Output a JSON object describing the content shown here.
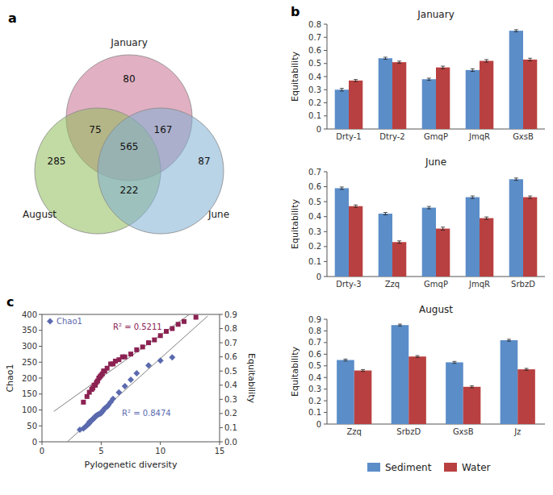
{
  "chart_data": [
    {
      "type": "venn",
      "sets": [
        "January",
        "August",
        "June"
      ],
      "colors": [
        "#c87090",
        "#8fbc5a",
        "#7fafd4"
      ],
      "values": [
        80,
        285,
        87,
        75,
        167,
        222,
        565
      ],
      "annotations": [
        {
          "text": "a"
        }
      ]
    },
    {
      "type": "bar",
      "title": "January",
      "ylabel": "Equitability",
      "categories": [
        "Drty-1",
        "Dtry-2",
        "GmqP",
        "JmqR",
        "GxsB"
      ],
      "ylim": [
        0,
        0.8
      ],
      "yticks": [
        0,
        0.1,
        0.2,
        0.3,
        0.4,
        0.5,
        0.6,
        0.7,
        0.8
      ],
      "series": [
        {
          "name": "Sediment",
          "color": "#5b8dc8",
          "values": [
            0.3,
            0.54,
            0.38,
            0.45,
            0.75
          ],
          "errors": [
            0.01,
            0.008,
            0.008,
            0.01,
            0.008
          ]
        },
        {
          "name": "Water",
          "color": "#b94040",
          "values": [
            0.37,
            0.51,
            0.47,
            0.52,
            0.53
          ],
          "errors": [
            0.008,
            0.008,
            0.01,
            0.01,
            0.01
          ]
        }
      ],
      "annotations": [
        {
          "text": "b"
        }
      ]
    },
    {
      "type": "bar",
      "title": "June",
      "ylabel": "Equitability",
      "categories": [
        "Drty-3",
        "Zzq",
        "GmqP",
        "JmqR",
        "SrbzD"
      ],
      "ylim": [
        0,
        0.7
      ],
      "yticks": [
        0,
        0.1,
        0.2,
        0.3,
        0.4,
        0.5,
        0.6,
        0.7
      ],
      "series": [
        {
          "name": "Sediment",
          "color": "#5b8dc8",
          "values": [
            0.59,
            0.42,
            0.46,
            0.53,
            0.65
          ],
          "errors": [
            0.008,
            0.008,
            0.008,
            0.008,
            0.008
          ]
        },
        {
          "name": "Water",
          "color": "#b94040",
          "values": [
            0.47,
            0.23,
            0.32,
            0.39,
            0.53
          ],
          "errors": [
            0.008,
            0.008,
            0.01,
            0.008,
            0.008
          ]
        }
      ]
    },
    {
      "type": "bar",
      "title": "August",
      "ylabel": "Equitability",
      "categories": [
        "Zzq",
        "SrbzD",
        "GxsB",
        "Jz"
      ],
      "ylim": [
        0,
        0.9
      ],
      "yticks": [
        0,
        0.1,
        0.2,
        0.3,
        0.4,
        0.5,
        0.6,
        0.7,
        0.8,
        0.9
      ],
      "series": [
        {
          "name": "Sediment",
          "color": "#5b8dc8",
          "values": [
            0.55,
            0.85,
            0.53,
            0.72
          ],
          "errors": [
            0.008,
            0.008,
            0.008,
            0.008
          ]
        },
        {
          "name": "Water",
          "color": "#b94040",
          "values": [
            0.46,
            0.58,
            0.32,
            0.47
          ],
          "errors": [
            0.008,
            0.008,
            0.008,
            0.008
          ]
        }
      ],
      "legend": "bottom"
    },
    {
      "type": "scatter",
      "xlabel": "Pylogenetic diversity",
      "ylabel": "Chao1",
      "y2label": "Equitability",
      "xlim": [
        0,
        15
      ],
      "xticks": [
        0,
        5,
        10,
        15
      ],
      "ylim": [
        0,
        400
      ],
      "yticks": [
        0,
        50,
        100,
        150,
        200,
        250,
        300,
        350,
        400
      ],
      "y2lim": [
        0,
        0.9
      ],
      "y2ticks": [
        {
          "value": 0,
          "label": "0.0"
        },
        0.1,
        0.2,
        0.3,
        0.4,
        0.5,
        0.6,
        0.7,
        0.8,
        0.9
      ],
      "legend": "upper left",
      "series": [
        {
          "name": "Chao1",
          "color": "#5b6aae",
          "marker": "diamond",
          "x": [
            3.2,
            3.5,
            3.7,
            3.8,
            3.9,
            4.0,
            4.0,
            4.1,
            4.2,
            4.3,
            4.3,
            4.4,
            4.5,
            4.5,
            4.6,
            4.7,
            4.8,
            4.9,
            5.0,
            5.0,
            5.1,
            5.2,
            5.3,
            5.5,
            5.6,
            5.8,
            6.0,
            6.5,
            7.0,
            7.5,
            8.0,
            9.0,
            10.0,
            11.0
          ],
          "values": [
            38,
            42,
            48,
            52,
            55,
            58,
            62,
            65,
            68,
            70,
            72,
            75,
            78,
            80,
            82,
            85,
            87,
            88,
            90,
            92,
            95,
            100,
            105,
            110,
            115,
            125,
            135,
            155,
            175,
            195,
            215,
            240,
            255,
            265
          ]
        },
        {
          "color": "#8b2252",
          "marker": "square",
          "axis": "y2",
          "x": [
            3.5,
            3.8,
            4.0,
            4.2,
            4.3,
            4.4,
            4.5,
            4.6,
            4.7,
            4.8,
            4.9,
            5.0,
            5.1,
            5.2,
            5.3,
            5.5,
            5.8,
            6.0,
            6.2,
            6.5,
            6.8,
            7.0,
            7.5,
            8.0,
            8.5,
            9.0,
            9.5,
            10.0,
            10.5,
            11.0,
            11.5,
            12.0,
            13.0
          ],
          "values": [
            0.28,
            0.32,
            0.35,
            0.37,
            0.38,
            0.4,
            0.4,
            0.42,
            0.43,
            0.45,
            0.46,
            0.47,
            0.48,
            0.5,
            0.5,
            0.52,
            0.55,
            0.55,
            0.57,
            0.58,
            0.6,
            0.6,
            0.62,
            0.65,
            0.67,
            0.7,
            0.72,
            0.75,
            0.78,
            0.8,
            0.83,
            0.85,
            0.88
          ]
        },
        {
          "type": "line",
          "color": "#808080",
          "x": [
            2.13544,
            14
          ],
          "values": [
            0,
            395.0007
          ]
        },
        {
          "type": "line",
          "color": "#808080",
          "axis": "y2",
          "x": [
            1,
            12.4497
          ],
          "values": [
            0.21451,
            0.9
          ]
        }
      ],
      "annotations": [
        {
          "text": "c"
        },
        {
          "text": "R² = 0.5211",
          "color": "#8b2252"
        },
        {
          "text": "R² = 0.8474",
          "color": "#5b6aae"
        }
      ]
    }
  ]
}
